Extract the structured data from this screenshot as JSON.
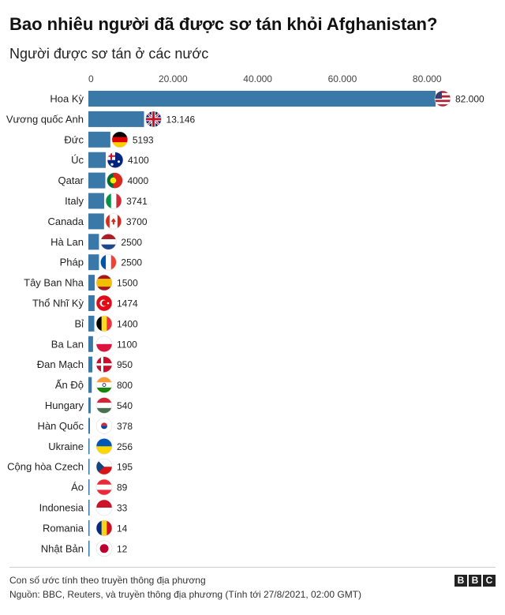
{
  "title": "Bao nhiêu người đã được sơ tán khỏi Afghanistan?",
  "subtitle": "Người được sơ tán ở các nước",
  "note": "Con số ước tính theo truyền thông địa phương",
  "source": "Nguồn: BBC, Reuters, và truyền thông địa phương (Tính tới 27/8/2021, 02:00 GMT)",
  "logo_letters": [
    "B",
    "B",
    "C"
  ],
  "chart_data": {
    "type": "bar",
    "orientation": "horizontal",
    "xlim": [
      0,
      82000
    ],
    "xticks": [
      0,
      20000,
      40000,
      60000,
      80000
    ],
    "xtick_labels": [
      "0",
      "20.000",
      "40.000",
      "60.000",
      "80.000"
    ],
    "bar_color": "#3a78a8",
    "categories": [
      "Hoa Kỳ",
      "Vương quốc Anh",
      "Đức",
      "Úc",
      "Qatar",
      "Italy",
      "Canada",
      "Hà Lan",
      "Pháp",
      "Tây Ban Nha",
      "Thổ Nhĩ Kỳ",
      "Bỉ",
      "Ba Lan",
      "Đan Mạch",
      "Ấn Độ",
      "Hungary",
      "Hàn Quốc",
      "Ukraine",
      "Cộng hòa Czech",
      "Áo",
      "Indonesia",
      "Romania",
      "Nhật Bản"
    ],
    "values": [
      82000,
      13146,
      5193,
      4100,
      4000,
      3741,
      3700,
      2500,
      2500,
      1500,
      1474,
      1400,
      1100,
      950,
      800,
      540,
      378,
      256,
      195,
      89,
      33,
      14,
      12
    ],
    "value_labels": [
      "82.000",
      "13.146",
      "5193",
      "4100",
      "4000",
      "3741",
      "3700",
      "2500",
      "2500",
      "1500",
      "1474",
      "1400",
      "1100",
      "950",
      "800",
      "540",
      "378",
      "256",
      "195",
      "89",
      "33",
      "14",
      "12"
    ],
    "flags": [
      "us-flag",
      "uk-flag",
      "germany-flag",
      "australia-flag",
      "portugal-flag",
      "italy-flag",
      "canada-flag",
      "netherlands-flag",
      "france-flag",
      "spain-flag",
      "turkey-flag",
      "belgium-flag",
      "poland-flag",
      "denmark-flag",
      "india-flag",
      "hungary-flag",
      "south-korea-flag",
      "ukraine-flag",
      "czech-flag",
      "austria-flag",
      "indonesia-flag",
      "romania-flag",
      "japan-flag"
    ]
  }
}
